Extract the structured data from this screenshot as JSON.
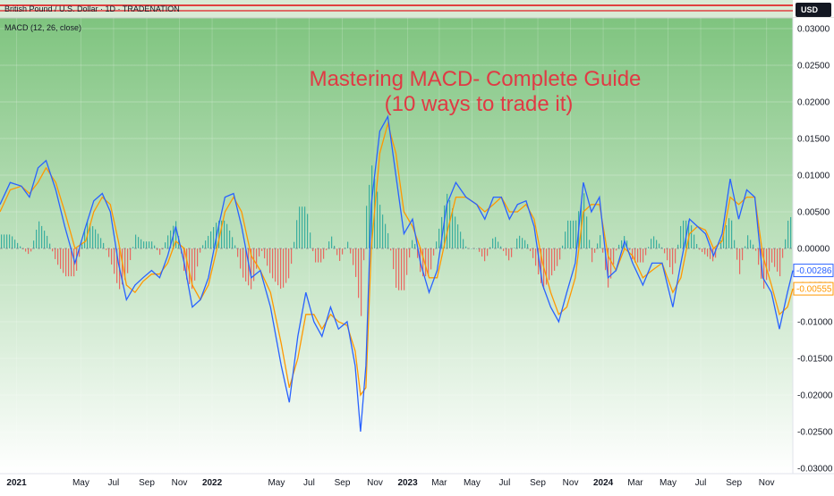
{
  "header": {
    "symbol_text": "British Pound / U.S. Dollar · 1D · TRADENATION",
    "currency_button": "USD"
  },
  "indicator_label": "MACD (12, 26, close)",
  "overlay_title": {
    "line1": "Mastering MACD- Complete Guide",
    "line2": "(10 ways to trade it)"
  },
  "colors": {
    "macd_line": "#2962ff",
    "signal_line": "#ff9800",
    "hist_positive": "#26a69a",
    "hist_negative": "#ef5350",
    "title": "#e03a44",
    "bg_top": "#7fc47f",
    "bg_bottom": "#ffffff"
  },
  "chart_data": {
    "type": "line",
    "title": "MACD (12, 26, close)",
    "xlabel": "",
    "ylabel": "",
    "ylim": [
      -0.03,
      0.03
    ],
    "y_ticks": [
      "0.03000",
      "0.02500",
      "0.02000",
      "0.01500",
      "0.01000",
      "0.00500",
      "0.00000",
      "-0.00500",
      "-0.01000",
      "-0.01500",
      "-0.02000",
      "-0.02500",
      "-0.03000"
    ],
    "y_tick_values": [
      0.03,
      0.025,
      0.02,
      0.015,
      0.01,
      0.005,
      0,
      -0.005,
      -0.01,
      -0.015,
      -0.02,
      -0.025,
      -0.03
    ],
    "x_ticks": [
      "2021",
      "May",
      "Jul",
      "Sep",
      "Nov",
      "2022",
      "May",
      "Jul",
      "Sep",
      "Nov",
      "2023",
      "Mar",
      "May",
      "Jul",
      "Sep",
      "Nov",
      "2024",
      "Mar",
      "May",
      "Jul",
      "Sep",
      "Nov"
    ],
    "x_tick_values": [
      "2021-01-01",
      "2021-05-01",
      "2021-07-01",
      "2021-09-01",
      "2021-11-01",
      "2022-01-01",
      "2022-05-01",
      "2022-07-01",
      "2022-09-01",
      "2022-11-01",
      "2023-01-01",
      "2023-03-01",
      "2023-05-01",
      "2023-07-01",
      "2023-09-01",
      "2023-11-01",
      "2024-01-01",
      "2024-03-01",
      "2024-05-01",
      "2024-07-01",
      "2024-09-01",
      "2024-11-01"
    ],
    "x_range": [
      "2020-12-01",
      "2024-12-20"
    ],
    "last_values": {
      "macd_label": "-0.00286",
      "signal_label": "-0.00555"
    },
    "series": [
      {
        "role": "macd",
        "x": [
          "2020-12-01",
          "2020-12-20",
          "2021-01-10",
          "2021-01-25",
          "2021-02-10",
          "2021-02-25",
          "2021-03-15",
          "2021-04-01",
          "2021-04-20",
          "2021-05-10",
          "2021-05-25",
          "2021-06-10",
          "2021-06-25",
          "2021-07-10",
          "2021-07-25",
          "2021-08-10",
          "2021-08-25",
          "2021-09-10",
          "2021-09-25",
          "2021-10-10",
          "2021-10-25",
          "2021-11-10",
          "2021-11-25",
          "2021-12-10",
          "2021-12-25",
          "2022-01-10",
          "2022-01-25",
          "2022-02-10",
          "2022-02-25",
          "2022-03-15",
          "2022-04-01",
          "2022-04-20",
          "2022-05-10",
          "2022-05-25",
          "2022-06-10",
          "2022-06-25",
          "2022-07-10",
          "2022-07-25",
          "2022-08-10",
          "2022-08-25",
          "2022-09-10",
          "2022-09-25",
          "2022-10-05",
          "2022-10-15",
          "2022-10-25",
          "2022-11-10",
          "2022-11-25",
          "2022-12-10",
          "2022-12-25",
          "2023-01-10",
          "2023-01-25",
          "2023-02-10",
          "2023-02-25",
          "2023-03-15",
          "2023-04-01",
          "2023-04-20",
          "2023-05-10",
          "2023-05-25",
          "2023-06-10",
          "2023-06-25",
          "2023-07-10",
          "2023-07-25",
          "2023-08-10",
          "2023-08-25",
          "2023-09-10",
          "2023-09-25",
          "2023-10-10",
          "2023-10-25",
          "2023-11-10",
          "2023-11-25",
          "2023-12-10",
          "2023-12-25",
          "2024-01-10",
          "2024-01-25",
          "2024-02-10",
          "2024-02-25",
          "2024-03-15",
          "2024-04-01",
          "2024-04-20",
          "2024-05-10",
          "2024-05-25",
          "2024-06-10",
          "2024-06-25",
          "2024-07-10",
          "2024-07-25",
          "2024-08-10",
          "2024-08-25",
          "2024-09-10",
          "2024-09-25",
          "2024-10-10",
          "2024-10-25",
          "2024-11-10",
          "2024-11-25",
          "2024-12-10",
          "2024-12-20"
        ],
        "values": [
          0.006,
          0.009,
          0.0085,
          0.007,
          0.011,
          0.012,
          0.008,
          0.003,
          -0.002,
          0.003,
          0.0065,
          0.0075,
          0.005,
          -0.002,
          -0.007,
          -0.005,
          -0.004,
          -0.003,
          -0.004,
          -0.001,
          0.003,
          -0.002,
          -0.008,
          -0.007,
          -0.004,
          0.002,
          0.007,
          0.0075,
          0.003,
          -0.004,
          -0.003,
          -0.008,
          -0.016,
          -0.021,
          -0.012,
          -0.006,
          -0.01,
          -0.012,
          -0.008,
          -0.011,
          -0.01,
          -0.016,
          -0.025,
          -0.016,
          0.006,
          0.016,
          0.018,
          0.01,
          0.002,
          0.004,
          -0.002,
          -0.006,
          -0.003,
          0.006,
          0.009,
          0.007,
          0.006,
          0.004,
          0.007,
          0.007,
          0.004,
          0.006,
          0.0065,
          0.003,
          -0.005,
          -0.008,
          -0.01,
          -0.006,
          -0.002,
          0.009,
          0.005,
          0.007,
          -0.004,
          -0.003,
          0.001,
          -0.002,
          -0.005,
          -0.002,
          -0.002,
          -0.008,
          -0.002,
          0.004,
          0.003,
          0.002,
          -0.001,
          0.002,
          0.0095,
          0.004,
          0.008,
          0.007,
          -0.004,
          -0.006,
          -0.011,
          -0.006,
          -0.003
        ]
      },
      {
        "role": "signal",
        "x": [
          "2020-12-01",
          "2020-12-20",
          "2021-01-10",
          "2021-01-25",
          "2021-02-10",
          "2021-02-25",
          "2021-03-15",
          "2021-04-01",
          "2021-04-20",
          "2021-05-10",
          "2021-05-25",
          "2021-06-10",
          "2021-06-25",
          "2021-07-10",
          "2021-07-25",
          "2021-08-10",
          "2021-08-25",
          "2021-09-10",
          "2021-09-25",
          "2021-10-10",
          "2021-10-25",
          "2021-11-10",
          "2021-11-25",
          "2021-12-10",
          "2021-12-25",
          "2022-01-10",
          "2022-01-25",
          "2022-02-10",
          "2022-02-25",
          "2022-03-15",
          "2022-04-01",
          "2022-04-20",
          "2022-05-10",
          "2022-05-25",
          "2022-06-10",
          "2022-06-25",
          "2022-07-10",
          "2022-07-25",
          "2022-08-10",
          "2022-08-25",
          "2022-09-10",
          "2022-09-25",
          "2022-10-05",
          "2022-10-15",
          "2022-10-25",
          "2022-11-10",
          "2022-11-25",
          "2022-12-10",
          "2022-12-25",
          "2023-01-10",
          "2023-01-25",
          "2023-02-10",
          "2023-02-25",
          "2023-03-15",
          "2023-04-01",
          "2023-04-20",
          "2023-05-10",
          "2023-05-25",
          "2023-06-10",
          "2023-06-25",
          "2023-07-10",
          "2023-07-25",
          "2023-08-10",
          "2023-08-25",
          "2023-09-10",
          "2023-09-25",
          "2023-10-10",
          "2023-10-25",
          "2023-11-10",
          "2023-11-25",
          "2023-12-10",
          "2023-12-25",
          "2024-01-10",
          "2024-01-25",
          "2024-02-10",
          "2024-02-25",
          "2024-03-15",
          "2024-04-01",
          "2024-04-20",
          "2024-05-10",
          "2024-05-25",
          "2024-06-10",
          "2024-06-25",
          "2024-07-10",
          "2024-07-25",
          "2024-08-10",
          "2024-08-25",
          "2024-09-10",
          "2024-09-25",
          "2024-10-10",
          "2024-10-25",
          "2024-11-10",
          "2024-11-25",
          "2024-12-10",
          "2024-12-20"
        ],
        "values": [
          0.005,
          0.008,
          0.0085,
          0.0075,
          0.009,
          0.011,
          0.009,
          0.005,
          0.0,
          0.001,
          0.005,
          0.007,
          0.006,
          0.001,
          -0.005,
          -0.006,
          -0.0045,
          -0.0035,
          -0.0035,
          -0.002,
          0.001,
          0.0,
          -0.005,
          -0.007,
          -0.005,
          0.0,
          0.005,
          0.007,
          0.005,
          -0.001,
          -0.003,
          -0.006,
          -0.013,
          -0.019,
          -0.015,
          -0.009,
          -0.009,
          -0.011,
          -0.009,
          -0.01,
          -0.0105,
          -0.014,
          -0.02,
          -0.019,
          0.0,
          0.013,
          0.017,
          0.013,
          0.005,
          0.003,
          0.0,
          -0.004,
          -0.004,
          0.002,
          0.007,
          0.007,
          0.006,
          0.005,
          0.006,
          0.007,
          0.005,
          0.005,
          0.006,
          0.004,
          -0.002,
          -0.006,
          -0.009,
          -0.008,
          -0.004,
          0.005,
          0.006,
          0.006,
          -0.001,
          -0.003,
          0.0,
          -0.001,
          -0.004,
          -0.003,
          -0.002,
          -0.006,
          -0.004,
          0.002,
          0.003,
          0.0025,
          0.0,
          0.001,
          0.007,
          0.006,
          0.007,
          0.007,
          -0.001,
          -0.005,
          -0.009,
          -0.008,
          -0.0055
        ]
      }
    ]
  }
}
